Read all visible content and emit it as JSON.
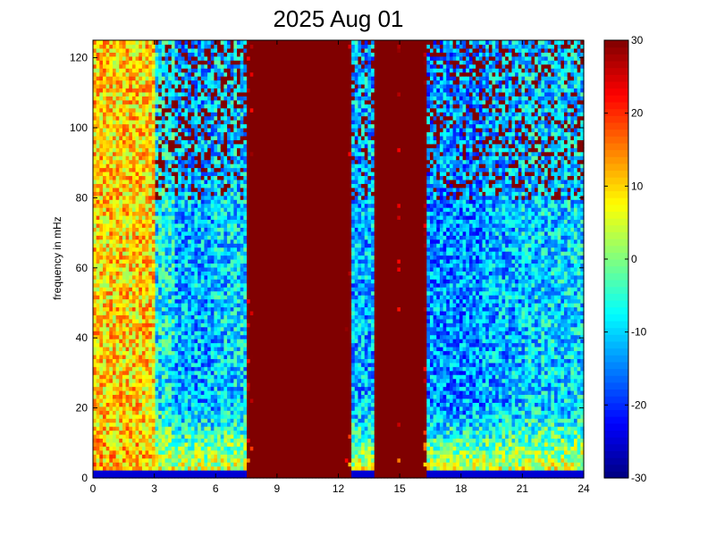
{
  "chart_data": {
    "type": "heatmap",
    "title": "2025 Aug 01",
    "xlabel": "",
    "ylabel": "frequency in mHz",
    "xlim": [
      0,
      24
    ],
    "ylim": [
      0,
      125
    ],
    "x_ticks": [
      "0",
      "3",
      "6",
      "9",
      "12",
      "15",
      "18",
      "21",
      "24"
    ],
    "y_ticks": [
      "0",
      "20",
      "40",
      "60",
      "80",
      "100",
      "120"
    ],
    "colorbar": {
      "range": [
        -30,
        30
      ],
      "ticks": [
        "-30",
        "-20",
        "-10",
        "0",
        "10",
        "20",
        "30"
      ],
      "colormap": "jet"
    },
    "background_level": [
      [
        0,
        3,
        10
      ],
      [
        3,
        4,
        -8
      ],
      [
        4,
        6,
        -12
      ],
      [
        6,
        7.5,
        -10
      ],
      [
        7.5,
        12.6,
        30
      ],
      [
        12.6,
        14,
        -12
      ],
      [
        14,
        16.4,
        30
      ],
      [
        16.4,
        19,
        -14
      ],
      [
        19,
        21,
        -12
      ],
      [
        21,
        24,
        -10
      ]
    ],
    "saturated_bands": [
      {
        "x": [
          7.8,
          12.3
        ],
        "level": 30
      },
      {
        "x": [
          13.8,
          14.9
        ],
        "level": 30
      },
      {
        "x": [
          15.1,
          16.2
        ],
        "level": 30
      }
    ],
    "low_frequency_enhancement": {
      "y_max": 20,
      "level": 12
    }
  }
}
